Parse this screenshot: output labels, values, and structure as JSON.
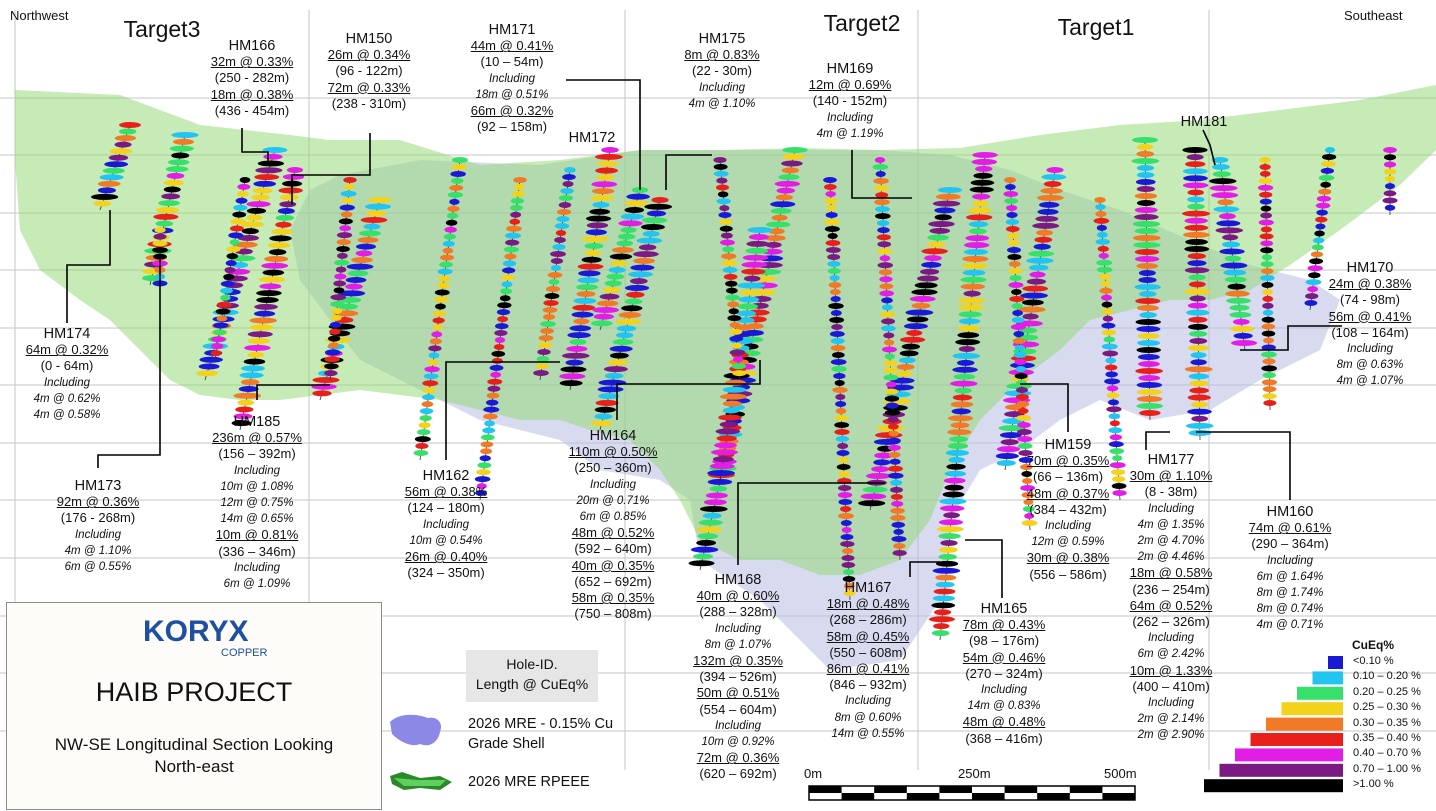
{
  "compass": {
    "left": "Northwest",
    "right": "Southeast"
  },
  "targets": [
    "Target3",
    "Target2",
    "Target1"
  ],
  "holes": [
    {
      "id": "HM166",
      "lines": [
        [
          "32m @ 0.33%",
          "u"
        ],
        [
          "(250 - 282m)",
          ""
        ],
        [
          "18m @ 0.38%",
          "u"
        ],
        [
          "(436 - 454m)",
          ""
        ]
      ]
    },
    {
      "id": "HM150",
      "lines": [
        [
          "26m @ 0.34%",
          "u"
        ],
        [
          "(96 - 122m)",
          ""
        ],
        [
          "72m @ 0.33%",
          "u"
        ],
        [
          "(238 - 310m)",
          ""
        ]
      ]
    },
    {
      "id": "HM171",
      "lines": [
        [
          "44m @ 0.41%",
          "u"
        ],
        [
          "(10 – 54m)",
          ""
        ],
        [
          "Including",
          "i"
        ],
        [
          "18m @ 0.51%",
          "i"
        ],
        [
          "66m @ 0.32%",
          "u"
        ],
        [
          "(92 – 158m)",
          ""
        ]
      ]
    },
    {
      "id": "HM175",
      "lines": [
        [
          "8m @ 0.83%",
          "u"
        ],
        [
          "(22 - 30m)",
          ""
        ],
        [
          "Including",
          "i"
        ],
        [
          "4m @ 1.10%",
          "i"
        ]
      ]
    },
    {
      "id": "HM169",
      "lines": [
        [
          "12m @ 0.69%",
          "u"
        ],
        [
          "(140 - 152m)",
          ""
        ],
        [
          "Including",
          "i"
        ],
        [
          "4m @ 1.19%",
          "i"
        ]
      ]
    },
    {
      "id": "HM172",
      "lines": []
    },
    {
      "id": "HM181",
      "lines": []
    },
    {
      "id": "HM170",
      "lines": [
        [
          "24m @ 0.38%",
          "u"
        ],
        [
          "(74 - 98m)",
          ""
        ],
        [
          "56m @ 0.41%",
          "u"
        ],
        [
          "(108 – 164m)",
          ""
        ],
        [
          "Including",
          "i"
        ],
        [
          "8m @ 0.63%",
          "i"
        ],
        [
          "4m @ 1.07%",
          "i"
        ]
      ]
    },
    {
      "id": "HM174",
      "lines": [
        [
          "64m @ 0.32%",
          "u"
        ],
        [
          "(0 - 64m)",
          ""
        ],
        [
          "Including",
          "i"
        ],
        [
          "4m @ 0.62%",
          "i"
        ],
        [
          "4m @ 0.58%",
          "i"
        ]
      ]
    },
    {
      "id": "HM185",
      "lines": [
        [
          "236m @ 0.57%",
          "u"
        ],
        [
          "(156 – 392m)",
          ""
        ],
        [
          "Including",
          "i"
        ],
        [
          "10m @ 1.08%",
          "i"
        ],
        [
          "12m @ 0.75%",
          "i"
        ],
        [
          "14m @ 0.65%",
          "i"
        ],
        [
          "10m @ 0.81%",
          "u"
        ],
        [
          "(336 – 346m)",
          ""
        ],
        [
          "Including",
          "i"
        ],
        [
          "6m @ 1.09%",
          "i"
        ]
      ]
    },
    {
      "id": "HM173",
      "lines": [
        [
          "92m @ 0.36%",
          "u"
        ],
        [
          "(176 - 268m)",
          ""
        ],
        [
          "Including",
          "i"
        ],
        [
          "4m @ 1.10%",
          "i"
        ],
        [
          "6m @ 0.55%",
          "i"
        ]
      ]
    },
    {
      "id": "HM162",
      "lines": [
        [
          "56m @ 0.38%",
          "u"
        ],
        [
          "(124 – 180m)",
          ""
        ],
        [
          "Including",
          "i"
        ],
        [
          "10m @ 0.54%",
          "i"
        ],
        [
          "26m @ 0.40%",
          "u"
        ],
        [
          "(324 – 350m)",
          ""
        ]
      ]
    },
    {
      "id": "HM164",
      "lines": [
        [
          "110m @ 0.50%",
          "u"
        ],
        [
          "(250 – 360m)",
          ""
        ],
        [
          "Including",
          "i"
        ],
        [
          "20m @ 0.71%",
          "i"
        ],
        [
          "6m @ 0.85%",
          "i"
        ],
        [
          "48m @ 0.52%",
          "u"
        ],
        [
          "(592 – 640m)",
          ""
        ],
        [
          "40m @ 0.35%",
          "u"
        ],
        [
          "(652 – 692m)",
          ""
        ],
        [
          "58m @ 0.35%",
          "u"
        ],
        [
          "(750 – 808m)",
          ""
        ]
      ]
    },
    {
      "id": "HM159",
      "lines": [
        [
          "70m @ 0.35%",
          "u"
        ],
        [
          "(66 – 136m)",
          ""
        ],
        [
          "48m @ 0.37%",
          "u"
        ],
        [
          "(384 – 432m)",
          ""
        ],
        [
          "Including",
          "i"
        ],
        [
          "12m @ 0.59%",
          "i"
        ],
        [
          "30m @ 0.38%",
          "u"
        ],
        [
          "(556 – 586m)",
          ""
        ]
      ]
    },
    {
      "id": "HM177",
      "lines": [
        [
          "30m @ 1.10%",
          "u"
        ],
        [
          "(8 - 38m)",
          ""
        ],
        [
          "Including",
          "i"
        ],
        [
          "4m @ 1.35%",
          "i"
        ],
        [
          "2m @ 4.70%",
          "i"
        ],
        [
          "2m @ 4.46%",
          "i"
        ],
        [
          "18m @ 0.58%",
          "u"
        ],
        [
          "(236 – 254m)",
          ""
        ],
        [
          "64m @ 0.52%",
          "u"
        ],
        [
          "(262 – 326m)",
          ""
        ],
        [
          "Including",
          "i"
        ],
        [
          "6m @ 2.42%",
          "i"
        ],
        [
          "10m @ 1.33%",
          "u"
        ],
        [
          "(400 – 410m)",
          ""
        ],
        [
          "Including",
          "i"
        ],
        [
          "2m @ 2.14%",
          "i"
        ],
        [
          "2m @ 2.90%",
          "i"
        ]
      ]
    },
    {
      "id": "HM160",
      "lines": [
        [
          "74m @ 0.61%",
          "u"
        ],
        [
          "(290 – 364m)",
          ""
        ],
        [
          "Including",
          "i"
        ],
        [
          "6m @ 1.64%",
          "i"
        ],
        [
          "8m @ 1.74%",
          "i"
        ],
        [
          "8m @ 0.74%",
          "i"
        ],
        [
          "4m @ 0.71%",
          "i"
        ]
      ]
    },
    {
      "id": "HM168",
      "lines": [
        [
          "40m @ 0.60%",
          "u"
        ],
        [
          "(288 – 328m)",
          ""
        ],
        [
          "Including",
          "i"
        ],
        [
          "8m @ 1.07%",
          "i"
        ],
        [
          "132m @ 0.35%",
          "u"
        ],
        [
          "(394 – 526m)",
          ""
        ],
        [
          "50m @ 0.51%",
          "u"
        ],
        [
          "(554 – 604m)",
          ""
        ],
        [
          "Including",
          "i"
        ],
        [
          "10m @ 0.92%",
          "i"
        ],
        [
          "72m @ 0.36%",
          "u"
        ],
        [
          "(620 – 692m)",
          ""
        ]
      ]
    },
    {
      "id": "HM167",
      "lines": [
        [
          "18m @ 0.48%",
          "u"
        ],
        [
          "(268 – 286m)",
          ""
        ],
        [
          "58m @ 0.45%",
          "u"
        ],
        [
          "(550 – 608m)",
          ""
        ],
        [
          "86m @ 0.41%",
          "u"
        ],
        [
          "(846 – 932m)",
          ""
        ],
        [
          "Including",
          "i"
        ],
        [
          "8m @ 0.60%",
          "i"
        ],
        [
          "14m @ 0.55%",
          "i"
        ]
      ]
    },
    {
      "id": "HM165",
      "lines": [
        [
          "78m @ 0.43%",
          "u"
        ],
        [
          "(98 – 176m)",
          ""
        ],
        [
          "54m @ 0.46%",
          "u"
        ],
        [
          "(270 – 324m)",
          ""
        ],
        [
          "Including",
          "i"
        ],
        [
          "14m @ 0.83%",
          "i"
        ],
        [
          "48m @ 0.48%",
          "u"
        ],
        [
          "(368 – 416m)",
          ""
        ]
      ]
    }
  ],
  "title_box": {
    "logo_main": "KORYX",
    "logo_sub": "COPPER",
    "project": "HAIB PROJECT",
    "section_line1": "NW-SE Longitudinal Section Looking",
    "section_line2": "North-east"
  },
  "key_box": {
    "line1": "Hole-ID.",
    "line2": "Length @ CuEq%"
  },
  "legend": {
    "shell_line1": "2026 MRE - 0.15% Cu",
    "shell_line2": "Grade Shell",
    "rpeee": "2026 MRE RPEEE"
  },
  "cueq_legend": {
    "title": "CuEq%",
    "classes": [
      {
        "label": "<0.10 %",
        "color": "#1a1ad6"
      },
      {
        "label": "0.10 – 0.20 %",
        "color": "#22c4f0"
      },
      {
        "label": "0.20 – 0.25 %",
        "color": "#36e06a"
      },
      {
        "label": "0.25 – 0.30 %",
        "color": "#f2d21a"
      },
      {
        "label": "0.30 – 0.35 %",
        "color": "#f07a26"
      },
      {
        "label": "0.35 – 0.40 %",
        "color": "#e8201c"
      },
      {
        "label": "0.40 – 0.70 %",
        "color": "#e21ee6"
      },
      {
        "label": "0.70 – 1.00 %",
        "color": "#7a1a82"
      },
      {
        "label": ">1.00 %",
        "color": "#000000"
      }
    ]
  },
  "scale_bar": {
    "labels": [
      "0m",
      "250m",
      "500m"
    ]
  },
  "colors": {
    "rpeee": "#8ed870",
    "grade_shell": "#a8aedc",
    "grid": "#bdbdbd"
  }
}
